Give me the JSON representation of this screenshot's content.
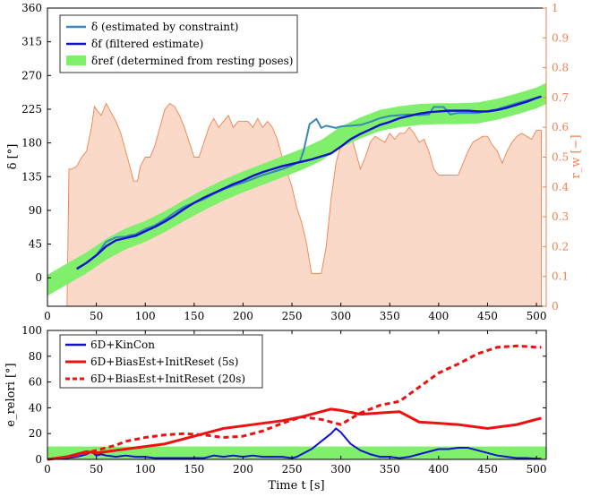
{
  "chart_data": [
    {
      "type": "line",
      "xlim": [
        0,
        510
      ],
      "ylim": [
        -38,
        360
      ],
      "y2lim": [
        0,
        1
      ],
      "grid": false,
      "legend_position": "top-left",
      "x_ticks": [
        "0",
        "50",
        "100",
        "150",
        "200",
        "250",
        "300",
        "350",
        "400",
        "450",
        "500"
      ],
      "y_ticks": [
        "0",
        "45",
        "90",
        "135",
        "180",
        "225",
        "270",
        "315",
        "360"
      ],
      "y2_ticks": [
        "0",
        "0.1",
        "0.2",
        "0.3",
        "0.4",
        "0.5",
        "0.6",
        "0.7",
        "0.8",
        "0.9",
        "1"
      ],
      "ylabel": "δ [°]",
      "y2label": "r_w [−]",
      "legend": [
        {
          "key": "delta",
          "label": "δ (estimated by constraint)",
          "color": "#3a87b8"
        },
        {
          "key": "delta_f",
          "label": "δf (filtered estimate)",
          "color": "#1212cc"
        },
        {
          "key": "delta_ref",
          "label": "δref (determined from resting poses)",
          "color": "#7fef6c"
        }
      ],
      "series": [
        {
          "name": "δ (estimated by constraint)",
          "axis": "left",
          "x": [
            30,
            40,
            50,
            60,
            70,
            80,
            85,
            90,
            100,
            110,
            120,
            130,
            140,
            150,
            160,
            170,
            180,
            190,
            200,
            210,
            220,
            230,
            240,
            250,
            258,
            262,
            268,
            275,
            280,
            285,
            295,
            300,
            310,
            320,
            330,
            340,
            350,
            360,
            370,
            380,
            390,
            395,
            400,
            405,
            412,
            420,
            440,
            460,
            480,
            500,
            505
          ],
          "y": [
            12,
            20,
            30,
            48,
            54,
            55,
            57,
            58,
            65,
            70,
            78,
            87,
            95,
            100,
            105,
            112,
            118,
            123,
            127,
            132,
            137,
            141,
            145,
            150,
            155,
            170,
            205,
            212,
            200,
            203,
            200,
            202,
            203,
            204,
            208,
            213,
            216,
            217,
            218,
            217,
            218,
            228,
            228,
            228,
            218,
            220,
            220,
            225,
            233,
            240,
            242
          ]
        },
        {
          "name": "δf (filtered estimate)",
          "axis": "left",
          "x": [
            30,
            40,
            50,
            60,
            70,
            80,
            90,
            100,
            110,
            120,
            130,
            140,
            150,
            160,
            170,
            180,
            190,
            200,
            210,
            220,
            230,
            240,
            250,
            260,
            270,
            280,
            290,
            300,
            310,
            320,
            330,
            340,
            350,
            360,
            370,
            380,
            390,
            400,
            410,
            420,
            430,
            440,
            450,
            460,
            470,
            480,
            490,
            500,
            505
          ],
          "y": [
            12,
            20,
            30,
            42,
            50,
            53,
            56,
            62,
            68,
            75,
            83,
            92,
            100,
            107,
            113,
            119,
            125,
            130,
            136,
            141,
            145,
            149,
            152,
            155,
            158,
            162,
            166,
            175,
            185,
            192,
            198,
            204,
            208,
            213,
            216,
            219,
            221,
            222,
            223,
            223,
            223,
            222,
            222,
            224,
            227,
            231,
            235,
            240,
            242
          ]
        },
        {
          "name": "δref (determined from resting poses)",
          "axis": "left",
          "x": [
            0,
            20,
            40,
            60,
            80,
            100,
            120,
            140,
            160,
            180,
            200,
            220,
            240,
            260,
            280,
            300,
            320,
            340,
            360,
            380,
            400,
            420,
            440,
            460,
            480,
            500,
            510
          ],
          "y": [
            -10,
            5,
            20,
            38,
            52,
            62,
            75,
            90,
            104,
            117,
            128,
            138,
            148,
            158,
            170,
            188,
            200,
            210,
            215,
            218,
            219,
            219,
            220,
            225,
            232,
            240,
            246
          ],
          "band_width": 14
        },
        {
          "name": "r_w",
          "axis": "right",
          "x": [
            20,
            22,
            25,
            30,
            35,
            40,
            45,
            48,
            50,
            55,
            60,
            65,
            70,
            75,
            80,
            85,
            88,
            92,
            95,
            100,
            105,
            110,
            115,
            120,
            125,
            130,
            135,
            140,
            145,
            150,
            155,
            160,
            165,
            170,
            175,
            180,
            185,
            190,
            195,
            200,
            205,
            210,
            215,
            220,
            225,
            230,
            235,
            240,
            245,
            250,
            255,
            260,
            265,
            270,
            275,
            280,
            285,
            290,
            295,
            300,
            305,
            310,
            315,
            320,
            325,
            330,
            335,
            340,
            345,
            350,
            355,
            360,
            365,
            370,
            375,
            380,
            385,
            390,
            395,
            400,
            405,
            410,
            415,
            420,
            425,
            430,
            435,
            440,
            445,
            450,
            455,
            460,
            465,
            470,
            475,
            480,
            485,
            490,
            495,
            500,
            505
          ],
          "y": [
            0,
            0.46,
            0.46,
            0.47,
            0.5,
            0.52,
            0.6,
            0.67,
            0.66,
            0.64,
            0.68,
            0.65,
            0.62,
            0.58,
            0.52,
            0.46,
            0.42,
            0.42,
            0.47,
            0.5,
            0.5,
            0.54,
            0.6,
            0.66,
            0.68,
            0.67,
            0.64,
            0.6,
            0.55,
            0.5,
            0.5,
            0.55,
            0.6,
            0.63,
            0.6,
            0.62,
            0.64,
            0.6,
            0.62,
            0.62,
            0.62,
            0.6,
            0.63,
            0.6,
            0.62,
            0.6,
            0.56,
            0.5,
            0.45,
            0.4,
            0.33,
            0.28,
            0.21,
            0.11,
            0.11,
            0.11,
            0.2,
            0.36,
            0.48,
            0.54,
            0.57,
            0.58,
            0.52,
            0.46,
            0.5,
            0.55,
            0.57,
            0.56,
            0.55,
            0.58,
            0.56,
            0.58,
            0.58,
            0.6,
            0.58,
            0.55,
            0.56,
            0.52,
            0.46,
            0.44,
            0.44,
            0.44,
            0.44,
            0.44,
            0.48,
            0.52,
            0.55,
            0.56,
            0.57,
            0.57,
            0.54,
            0.52,
            0.48,
            0.52,
            0.55,
            0.57,
            0.58,
            0.57,
            0.56,
            0.59,
            0.59
          ]
        }
      ]
    },
    {
      "type": "line",
      "xlim": [
        0,
        510
      ],
      "ylim": [
        0,
        100
      ],
      "grid": false,
      "legend_position": "top-left",
      "x_ticks": [
        "0",
        "50",
        "100",
        "150",
        "200",
        "250",
        "300",
        "350",
        "400",
        "450",
        "500"
      ],
      "y_ticks": [
        "0",
        "20",
        "40",
        "60",
        "80",
        "100"
      ],
      "xlabel": "Time t [s]",
      "ylabel": "e_relori [°]",
      "legend": [
        {
          "label": "6D+KinCon",
          "color": "#1212cc",
          "dash": false
        },
        {
          "label": "6D+BiasEst+InitReset (5s)",
          "color": "#ee1111",
          "dash": false
        },
        {
          "label": "6D+BiasEst+InitReset (20s)",
          "color": "#ee1111",
          "dash": true
        }
      ],
      "band": {
        "y_from": 0,
        "y_to": 10,
        "color": "#7fef6c"
      },
      "series": [
        {
          "name": "6D+KinCon",
          "color": "#1212cc",
          "dash": false,
          "x": [
            0,
            10,
            20,
            30,
            40,
            45,
            50,
            55,
            60,
            70,
            80,
            90,
            100,
            110,
            120,
            130,
            140,
            150,
            160,
            170,
            180,
            190,
            200,
            210,
            220,
            230,
            240,
            250,
            255,
            260,
            270,
            280,
            290,
            295,
            300,
            310,
            320,
            330,
            340,
            350,
            360,
            370,
            380,
            390,
            400,
            410,
            420,
            430,
            440,
            450,
            460,
            470,
            480,
            490,
            500,
            505
          ],
          "y": [
            0,
            0.5,
            1,
            2,
            4,
            6,
            3,
            4,
            3,
            2,
            3,
            2,
            2,
            1,
            1,
            1,
            1,
            1,
            1,
            3,
            2,
            3,
            2,
            3,
            2,
            2,
            2,
            1,
            2,
            4,
            8,
            14,
            20,
            24,
            21,
            12,
            7,
            4,
            2,
            2,
            1,
            2,
            4,
            6,
            8,
            8,
            9,
            9,
            7,
            5,
            3,
            2,
            1,
            1,
            0.5,
            0.5
          ]
        },
        {
          "name": "6D+BiasEst+InitReset (5s)",
          "color": "#ee1111",
          "dash": false,
          "x": [
            0,
            10,
            20,
            30,
            40,
            50,
            60,
            80,
            100,
            120,
            140,
            160,
            180,
            200,
            220,
            240,
            260,
            280,
            290,
            300,
            320,
            340,
            360,
            380,
            400,
            420,
            440,
            450,
            460,
            480,
            500,
            505
          ],
          "y": [
            0,
            1,
            2,
            4,
            6,
            5,
            6,
            8,
            10,
            12,
            16,
            20,
            24,
            26,
            28,
            30,
            33,
            37,
            39,
            38,
            35,
            36,
            37,
            29,
            28,
            27,
            25,
            24,
            25,
            27,
            31,
            32
          ]
        },
        {
          "name": "6D+BiasEst+InitReset (20s)",
          "color": "#ee1111",
          "dash": true,
          "x": [
            0,
            10,
            20,
            30,
            40,
            50,
            60,
            70,
            80,
            100,
            120,
            140,
            160,
            180,
            200,
            220,
            240,
            260,
            280,
            300,
            320,
            340,
            360,
            380,
            400,
            420,
            440,
            460,
            480,
            500,
            505
          ],
          "y": [
            0,
            1,
            2,
            3,
            5,
            7,
            9,
            11,
            14,
            17,
            19,
            20,
            19,
            17,
            18,
            22,
            28,
            33,
            31,
            27,
            36,
            42,
            45,
            56,
            67,
            74,
            82,
            87,
            88,
            87,
            87
          ]
        }
      ]
    }
  ]
}
